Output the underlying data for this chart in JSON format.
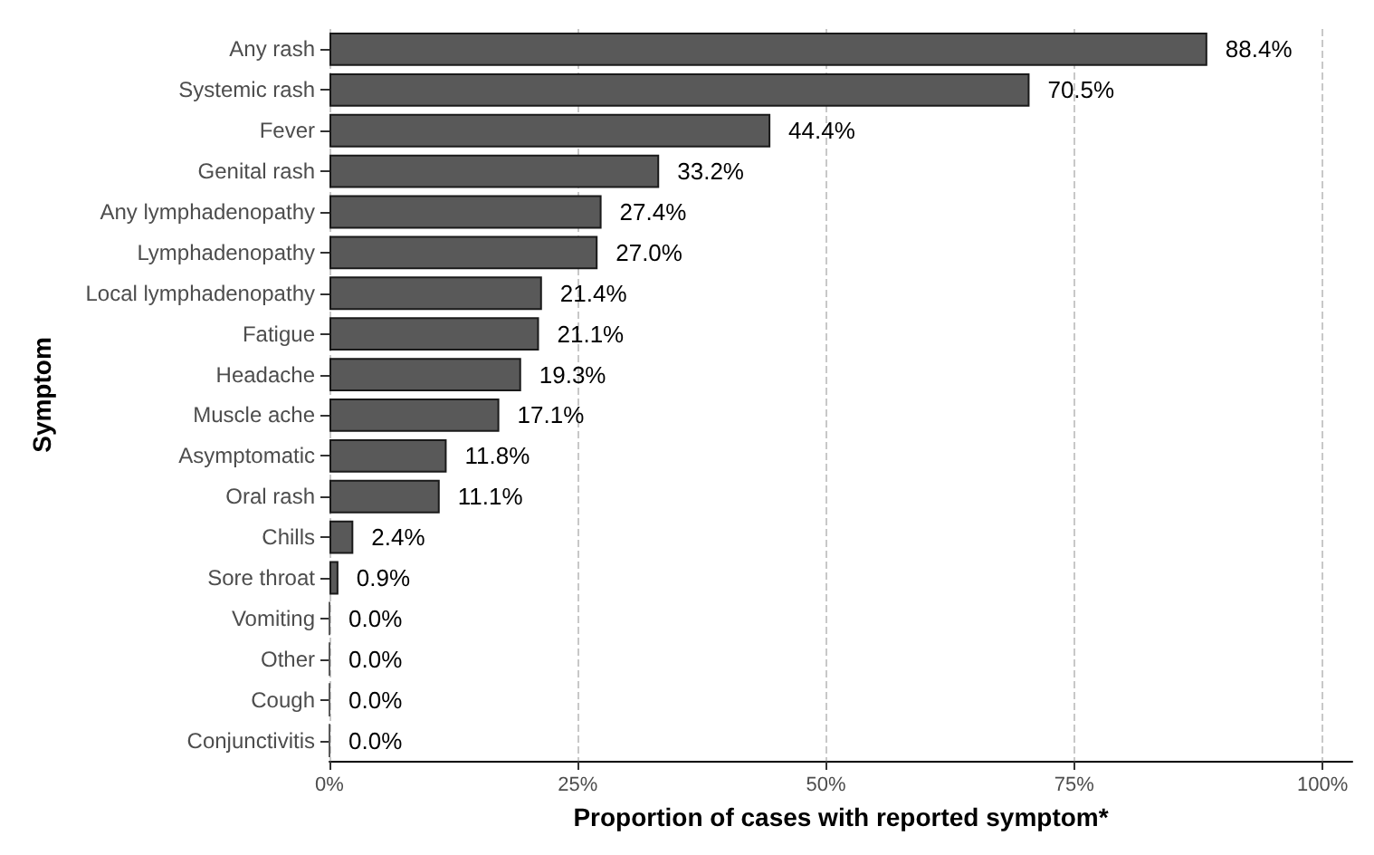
{
  "chart_data": {
    "type": "bar",
    "orientation": "horizontal",
    "xlabel": "Proportion of cases with reported symptom*",
    "ylabel": "Symptom",
    "categories": [
      "Any rash",
      "Systemic rash",
      "Fever",
      "Genital rash",
      "Any lymphadenopathy",
      "Lymphadenopathy",
      "Local lymphadenopathy",
      "Fatigue",
      "Headache",
      "Muscle ache",
      "Asymptomatic",
      "Oral rash",
      "Chills",
      "Sore throat",
      "Vomiting",
      "Other",
      "Cough",
      "Conjunctivitis"
    ],
    "values": [
      88.4,
      70.5,
      44.4,
      33.2,
      27.4,
      27.0,
      21.4,
      21.1,
      19.3,
      17.1,
      11.8,
      11.1,
      2.4,
      0.9,
      0.0,
      0.0,
      0.0,
      0.0
    ],
    "value_labels": [
      "88.4%",
      "70.5%",
      "44.4%",
      "33.2%",
      "27.4%",
      "27.0%",
      "21.4%",
      "21.1%",
      "19.3%",
      "17.1%",
      "11.8%",
      "11.1%",
      "2.4%",
      "0.9%",
      "0.0%",
      "0.0%",
      "0.0%",
      "0.0%"
    ],
    "color": "#595959",
    "xlim": [
      0,
      103
    ],
    "xticks": [
      {
        "value": 0,
        "label": "0%"
      },
      {
        "value": 25,
        "label": "25%"
      },
      {
        "value": 50,
        "label": "50%"
      },
      {
        "value": 75,
        "label": "75%"
      },
      {
        "value": 100,
        "label": "100%"
      }
    ],
    "grid": "x"
  }
}
